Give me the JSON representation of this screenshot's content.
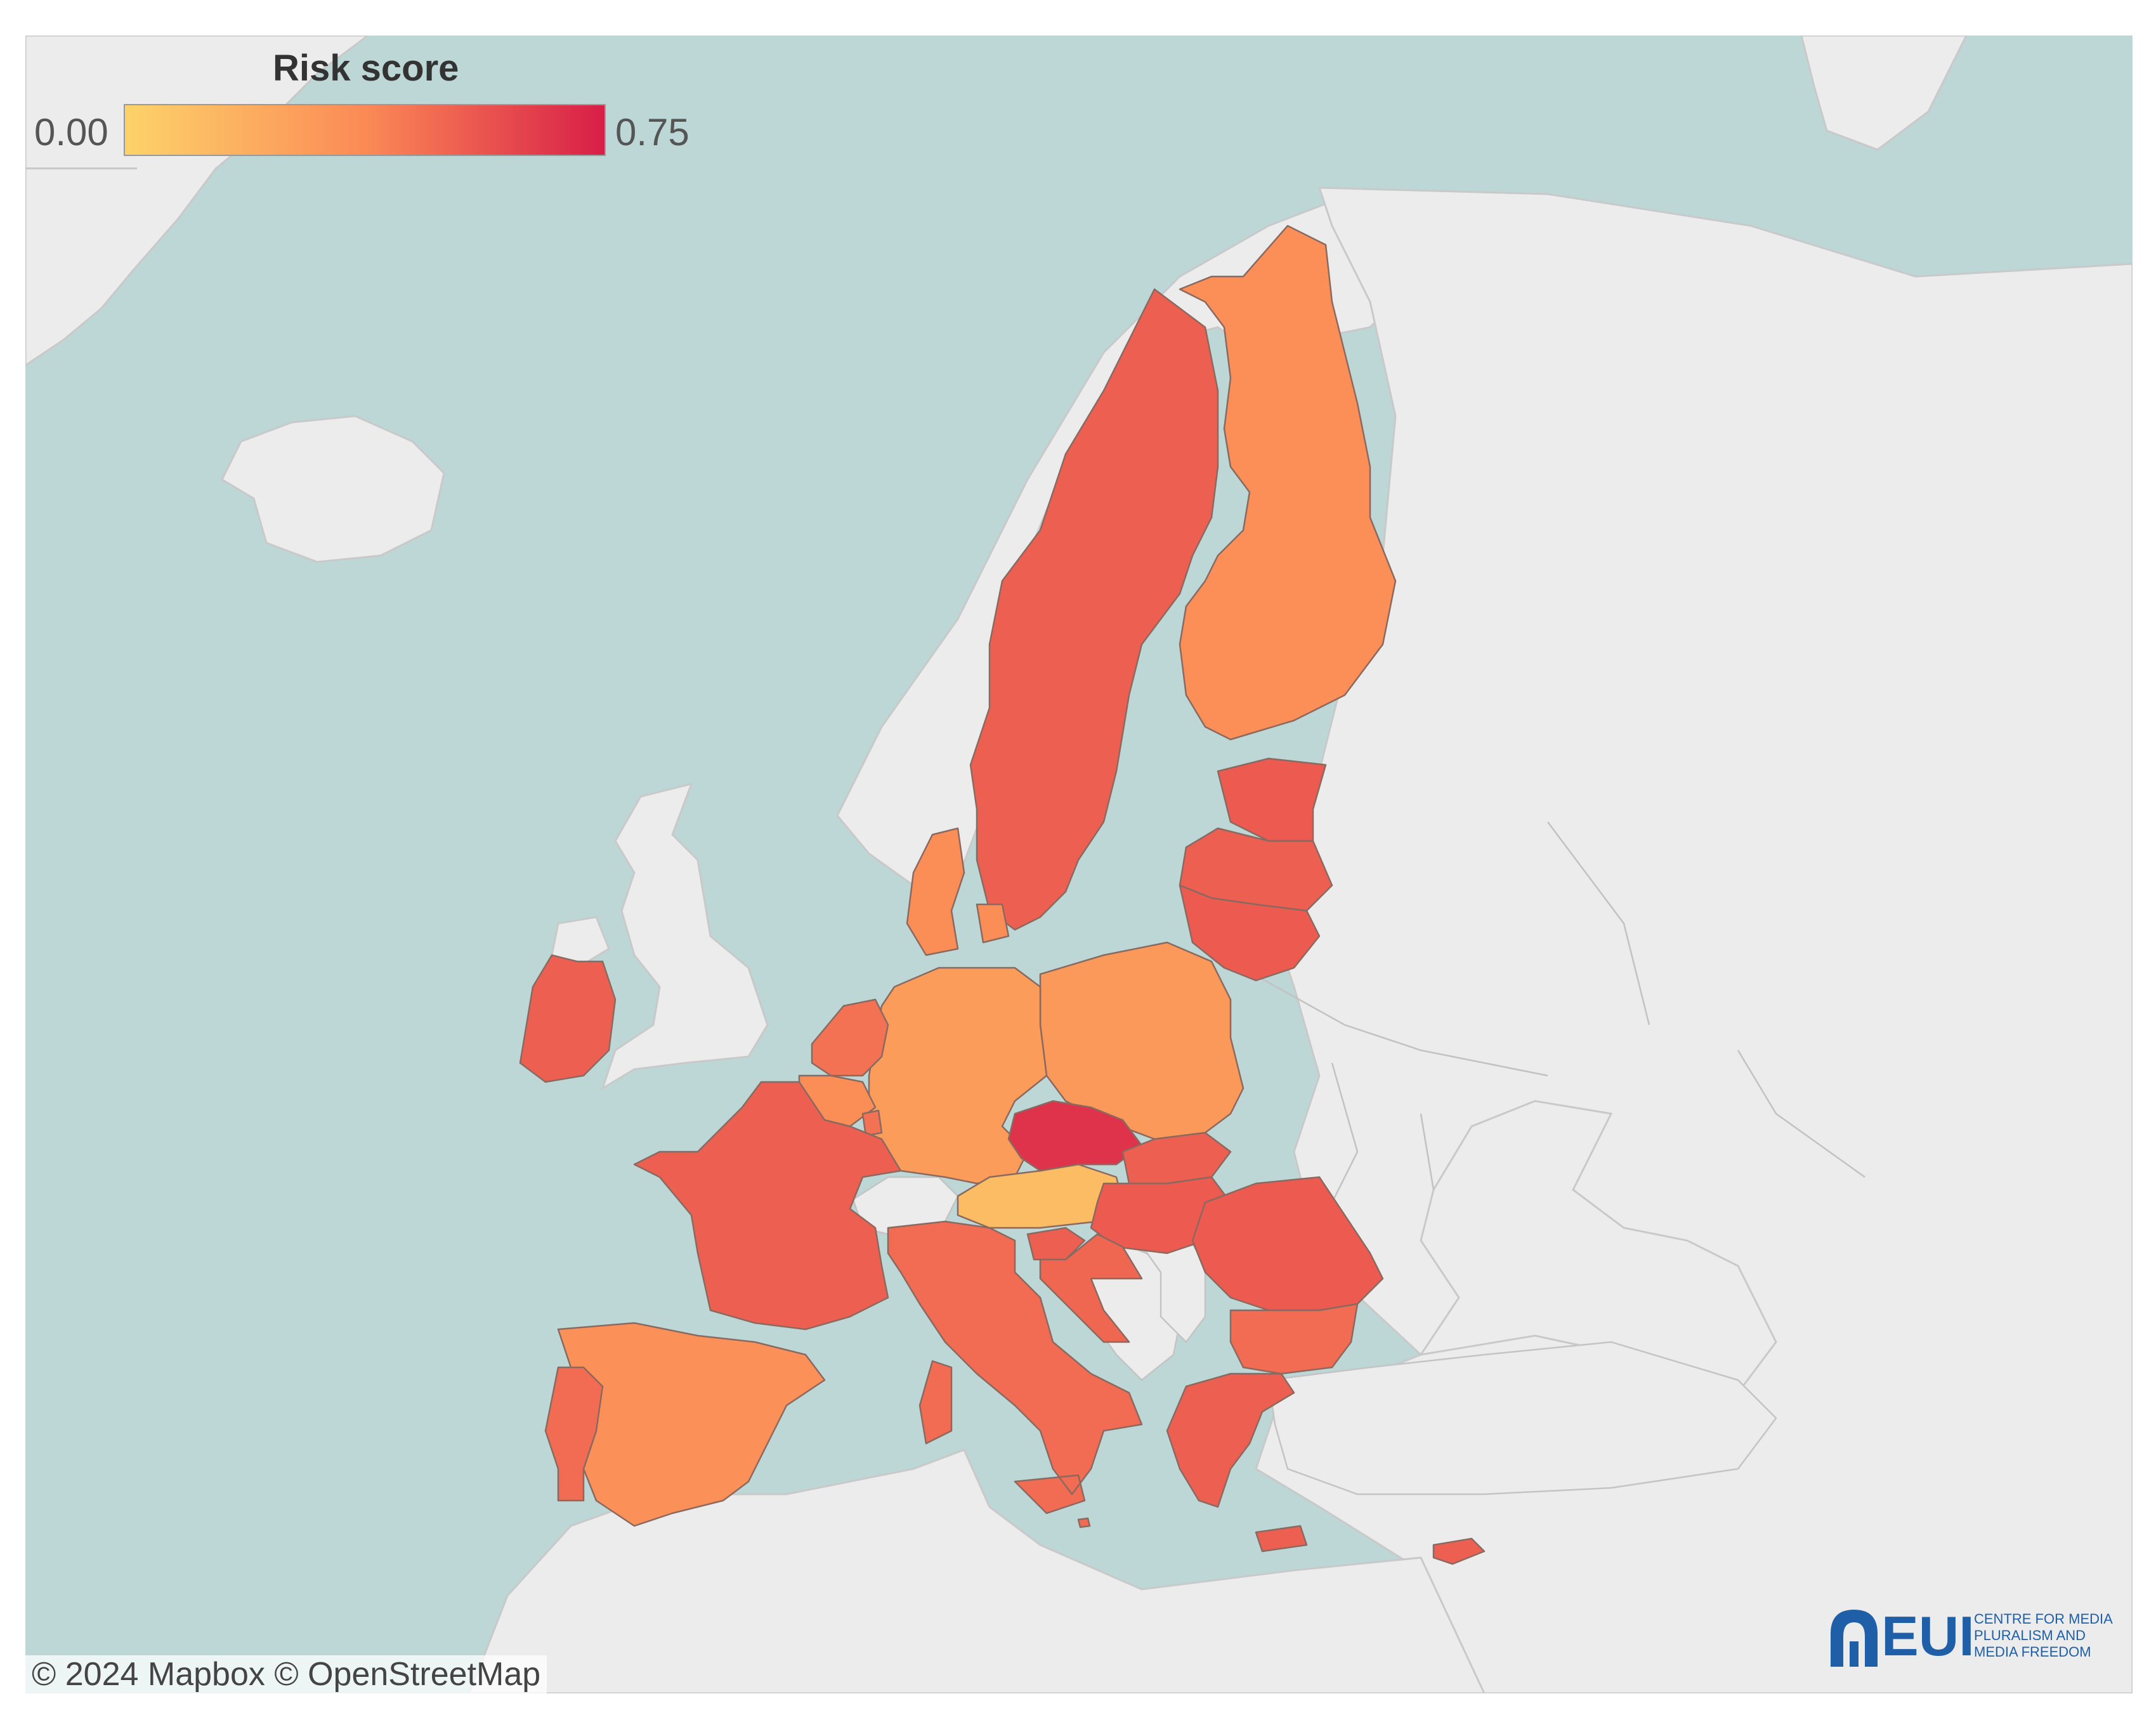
{
  "legend": {
    "title": "Risk score",
    "min_label": "0.00",
    "max_label": "0.75",
    "min_value": 0.0,
    "max_value": 0.75,
    "color_low": "#fdd36a",
    "color_mid": "#fb8a56",
    "color_high": "#d81e48"
  },
  "attribution": "© 2024 Mapbox © OpenStreetMap",
  "logo": {
    "text": "EUI",
    "tagline": [
      "CENTRE FOR MEDIA",
      "PLURALISM AND",
      "MEDIA FREEDOM"
    ]
  },
  "colors": {
    "water": "#bdd6d6",
    "land": "#ececec"
  },
  "countries": [
    {
      "id": "sweden",
      "risk": 0.52
    },
    {
      "id": "finland",
      "risk": 0.35
    },
    {
      "id": "estonia",
      "risk": 0.54
    },
    {
      "id": "latvia",
      "risk": 0.52
    },
    {
      "id": "lithuania",
      "risk": 0.54
    },
    {
      "id": "poland",
      "risk": 0.3
    },
    {
      "id": "germany",
      "risk": 0.28
    },
    {
      "id": "denmark",
      "risk": 0.36
    },
    {
      "id": "netherlands",
      "risk": 0.46
    },
    {
      "id": "belgium",
      "risk": 0.36
    },
    {
      "id": "luxembourg",
      "risk": 0.46
    },
    {
      "id": "france",
      "risk": 0.52
    },
    {
      "id": "ireland",
      "risk": 0.52
    },
    {
      "id": "spain",
      "risk": 0.34
    },
    {
      "id": "portugal",
      "risk": 0.48
    },
    {
      "id": "italy",
      "risk": 0.48
    },
    {
      "id": "austria",
      "risk": 0.12
    },
    {
      "id": "czechia",
      "risk": 0.68
    },
    {
      "id": "slovakia",
      "risk": 0.52
    },
    {
      "id": "hungary",
      "risk": 0.54
    },
    {
      "id": "romania",
      "risk": 0.54
    },
    {
      "id": "bulgaria",
      "risk": 0.48
    },
    {
      "id": "greece",
      "risk": 0.52
    },
    {
      "id": "cyprus",
      "risk": 0.52
    },
    {
      "id": "malta",
      "risk": 0.48
    },
    {
      "id": "slovenia",
      "risk": 0.52
    },
    {
      "id": "croatia",
      "risk": 0.5
    }
  ]
}
